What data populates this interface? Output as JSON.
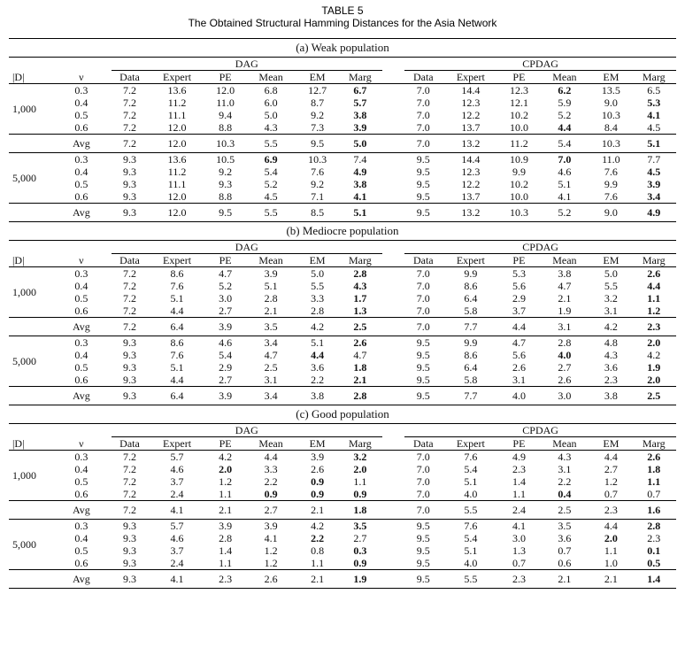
{
  "table_label": "TABLE 5",
  "table_title": "The Obtained Structural Hamming Distances for the Asia Network",
  "group_dag": "DAG",
  "group_cpdag": "CPDAG",
  "col_d": "|D|",
  "col_nu": "ν",
  "method_cols": [
    "Data",
    "Expert",
    "PE",
    "Mean",
    "EM",
    "Marg"
  ],
  "sections": [
    {
      "title": "(a) Weak population",
      "blocks": [
        {
          "d": "1,000",
          "rows": [
            {
              "nu": "0.3",
              "dag": [
                "7.2",
                "13.6",
                "12.0",
                "6.8",
                "12.7",
                "6.7"
              ],
              "cpdag": [
                "7.0",
                "14.4",
                "12.3",
                "6.2",
                "13.5",
                "6.5"
              ],
              "dag_bold": [
                5
              ],
              "cpdag_bold": [
                3
              ]
            },
            {
              "nu": "0.4",
              "dag": [
                "7.2",
                "11.2",
                "11.0",
                "6.0",
                "8.7",
                "5.7"
              ],
              "cpdag": [
                "7.0",
                "12.3",
                "12.1",
                "5.9",
                "9.0",
                "5.3"
              ],
              "dag_bold": [
                5
              ],
              "cpdag_bold": [
                5
              ]
            },
            {
              "nu": "0.5",
              "dag": [
                "7.2",
                "11.1",
                "9.4",
                "5.0",
                "9.2",
                "3.8"
              ],
              "cpdag": [
                "7.0",
                "12.2",
                "10.2",
                "5.2",
                "10.3",
                "4.1"
              ],
              "dag_bold": [
                5
              ],
              "cpdag_bold": [
                5
              ]
            },
            {
              "nu": "0.6",
              "dag": [
                "7.2",
                "12.0",
                "8.8",
                "4.3",
                "7.3",
                "3.9"
              ],
              "cpdag": [
                "7.0",
                "13.7",
                "10.0",
                "4.4",
                "8.4",
                "4.5"
              ],
              "dag_bold": [
                5
              ],
              "cpdag_bold": [
                3
              ]
            }
          ],
          "avg": {
            "label": "Avg",
            "dag": [
              "7.2",
              "12.0",
              "10.3",
              "5.5",
              "9.5",
              "5.0"
            ],
            "cpdag": [
              "7.0",
              "13.2",
              "11.2",
              "5.4",
              "10.3",
              "5.1"
            ],
            "dag_bold": [
              5
            ],
            "cpdag_bold": [
              5
            ]
          }
        },
        {
          "d": "5,000",
          "rows": [
            {
              "nu": "0.3",
              "dag": [
                "9.3",
                "13.6",
                "10.5",
                "6.9",
                "10.3",
                "7.4"
              ],
              "cpdag": [
                "9.5",
                "14.4",
                "10.9",
                "7.0",
                "11.0",
                "7.7"
              ],
              "dag_bold": [
                3
              ],
              "cpdag_bold": [
                3
              ]
            },
            {
              "nu": "0.4",
              "dag": [
                "9.3",
                "11.2",
                "9.2",
                "5.4",
                "7.6",
                "4.9"
              ],
              "cpdag": [
                "9.5",
                "12.3",
                "9.9",
                "4.6",
                "7.6",
                "4.5"
              ],
              "dag_bold": [
                5
              ],
              "cpdag_bold": [
                5
              ]
            },
            {
              "nu": "0.5",
              "dag": [
                "9.3",
                "11.1",
                "9.3",
                "5.2",
                "9.2",
                "3.8"
              ],
              "cpdag": [
                "9.5",
                "12.2",
                "10.2",
                "5.1",
                "9.9",
                "3.9"
              ],
              "dag_bold": [
                5
              ],
              "cpdag_bold": [
                5
              ]
            },
            {
              "nu": "0.6",
              "dag": [
                "9.3",
                "12.0",
                "8.8",
                "4.5",
                "7.1",
                "4.1"
              ],
              "cpdag": [
                "9.5",
                "13.7",
                "10.0",
                "4.1",
                "7.6",
                "3.4"
              ],
              "dag_bold": [
                5
              ],
              "cpdag_bold": [
                5
              ]
            }
          ],
          "avg": {
            "label": "Avg",
            "dag": [
              "9.3",
              "12.0",
              "9.5",
              "5.5",
              "8.5",
              "5.1"
            ],
            "cpdag": [
              "9.5",
              "13.2",
              "10.3",
              "5.2",
              "9.0",
              "4.9"
            ],
            "dag_bold": [
              5
            ],
            "cpdag_bold": [
              5
            ]
          }
        }
      ]
    },
    {
      "title": "(b) Mediocre population",
      "blocks": [
        {
          "d": "1,000",
          "rows": [
            {
              "nu": "0.3",
              "dag": [
                "7.2",
                "8.6",
                "4.7",
                "3.9",
                "5.0",
                "2.8"
              ],
              "cpdag": [
                "7.0",
                "9.9",
                "5.3",
                "3.8",
                "5.0",
                "2.6"
              ],
              "dag_bold": [
                5
              ],
              "cpdag_bold": [
                5
              ]
            },
            {
              "nu": "0.4",
              "dag": [
                "7.2",
                "7.6",
                "5.2",
                "5.1",
                "5.5",
                "4.3"
              ],
              "cpdag": [
                "7.0",
                "8.6",
                "5.6",
                "4.7",
                "5.5",
                "4.4"
              ],
              "dag_bold": [
                5
              ],
              "cpdag_bold": [
                5
              ]
            },
            {
              "nu": "0.5",
              "dag": [
                "7.2",
                "5.1",
                "3.0",
                "2.8",
                "3.3",
                "1.7"
              ],
              "cpdag": [
                "7.0",
                "6.4",
                "2.9",
                "2.1",
                "3.2",
                "1.1"
              ],
              "dag_bold": [
                5
              ],
              "cpdag_bold": [
                5
              ]
            },
            {
              "nu": "0.6",
              "dag": [
                "7.2",
                "4.4",
                "2.7",
                "2.1",
                "2.8",
                "1.3"
              ],
              "cpdag": [
                "7.0",
                "5.8",
                "3.7",
                "1.9",
                "3.1",
                "1.2"
              ],
              "dag_bold": [
                5
              ],
              "cpdag_bold": [
                5
              ]
            }
          ],
          "avg": {
            "label": "Avg",
            "dag": [
              "7.2",
              "6.4",
              "3.9",
              "3.5",
              "4.2",
              "2.5"
            ],
            "cpdag": [
              "7.0",
              "7.7",
              "4.4",
              "3.1",
              "4.2",
              "2.3"
            ],
            "dag_bold": [
              5
            ],
            "cpdag_bold": [
              5
            ]
          }
        },
        {
          "d": "5,000",
          "rows": [
            {
              "nu": "0.3",
              "dag": [
                "9.3",
                "8.6",
                "4.6",
                "3.4",
                "5.1",
                "2.6"
              ],
              "cpdag": [
                "9.5",
                "9.9",
                "4.7",
                "2.8",
                "4.8",
                "2.0"
              ],
              "dag_bold": [
                5
              ],
              "cpdag_bold": [
                5
              ]
            },
            {
              "nu": "0.4",
              "dag": [
                "9.3",
                "7.6",
                "5.4",
                "4.7",
                "4.4",
                "4.7"
              ],
              "cpdag": [
                "9.5",
                "8.6",
                "5.6",
                "4.0",
                "4.3",
                "4.2"
              ],
              "dag_bold": [
                4
              ],
              "cpdag_bold": [
                3
              ]
            },
            {
              "nu": "0.5",
              "dag": [
                "9.3",
                "5.1",
                "2.9",
                "2.5",
                "3.6",
                "1.8"
              ],
              "cpdag": [
                "9.5",
                "6.4",
                "2.6",
                "2.7",
                "3.6",
                "1.9"
              ],
              "dag_bold": [
                5
              ],
              "cpdag_bold": [
                5
              ]
            },
            {
              "nu": "0.6",
              "dag": [
                "9.3",
                "4.4",
                "2.7",
                "3.1",
                "2.2",
                "2.1"
              ],
              "cpdag": [
                "9.5",
                "5.8",
                "3.1",
                "2.6",
                "2.3",
                "2.0"
              ],
              "dag_bold": [
                5
              ],
              "cpdag_bold": [
                5
              ]
            }
          ],
          "avg": {
            "label": "Avg",
            "dag": [
              "9.3",
              "6.4",
              "3.9",
              "3.4",
              "3.8",
              "2.8"
            ],
            "cpdag": [
              "9.5",
              "7.7",
              "4.0",
              "3.0",
              "3.8",
              "2.5"
            ],
            "dag_bold": [
              5
            ],
            "cpdag_bold": [
              5
            ]
          }
        }
      ]
    },
    {
      "title": "(c) Good population",
      "blocks": [
        {
          "d": "1,000",
          "rows": [
            {
              "nu": "0.3",
              "dag": [
                "7.2",
                "5.7",
                "4.2",
                "4.4",
                "3.9",
                "3.2"
              ],
              "cpdag": [
                "7.0",
                "7.6",
                "4.9",
                "4.3",
                "4.4",
                "2.6"
              ],
              "dag_bold": [
                5
              ],
              "cpdag_bold": [
                5
              ]
            },
            {
              "nu": "0.4",
              "dag": [
                "7.2",
                "4.6",
                "2.0",
                "3.3",
                "2.6",
                "2.0"
              ],
              "cpdag": [
                "7.0",
                "5.4",
                "2.3",
                "3.1",
                "2.7",
                "1.8"
              ],
              "dag_bold": [
                2,
                5
              ],
              "cpdag_bold": [
                5
              ]
            },
            {
              "nu": "0.5",
              "dag": [
                "7.2",
                "3.7",
                "1.2",
                "2.2",
                "0.9",
                "1.1"
              ],
              "cpdag": [
                "7.0",
                "5.1",
                "1.4",
                "2.2",
                "1.2",
                "1.1"
              ],
              "dag_bold": [
                4
              ],
              "cpdag_bold": [
                5
              ]
            },
            {
              "nu": "0.6",
              "dag": [
                "7.2",
                "2.4",
                "1.1",
                "0.9",
                "0.9",
                "0.9"
              ],
              "cpdag": [
                "7.0",
                "4.0",
                "1.1",
                "0.4",
                "0.7",
                "0.7"
              ],
              "dag_bold": [
                3,
                4,
                5
              ],
              "cpdag_bold": [
                3
              ]
            }
          ],
          "avg": {
            "label": "Avg",
            "dag": [
              "7.2",
              "4.1",
              "2.1",
              "2.7",
              "2.1",
              "1.8"
            ],
            "cpdag": [
              "7.0",
              "5.5",
              "2.4",
              "2.5",
              "2.3",
              "1.6"
            ],
            "dag_bold": [
              5
            ],
            "cpdag_bold": [
              5
            ]
          }
        },
        {
          "d": "5,000",
          "rows": [
            {
              "nu": "0.3",
              "dag": [
                "9.3",
                "5.7",
                "3.9",
                "3.9",
                "4.2",
                "3.5"
              ],
              "cpdag": [
                "9.5",
                "7.6",
                "4.1",
                "3.5",
                "4.4",
                "2.8"
              ],
              "dag_bold": [
                5
              ],
              "cpdag_bold": [
                5
              ]
            },
            {
              "nu": "0.4",
              "dag": [
                "9.3",
                "4.6",
                "2.8",
                "4.1",
                "2.2",
                "2.7"
              ],
              "cpdag": [
                "9.5",
                "5.4",
                "3.0",
                "3.6",
                "2.0",
                "2.3"
              ],
              "dag_bold": [
                4
              ],
              "cpdag_bold": [
                4
              ]
            },
            {
              "nu": "0.5",
              "dag": [
                "9.3",
                "3.7",
                "1.4",
                "1.2",
                "0.8",
                "0.3"
              ],
              "cpdag": [
                "9.5",
                "5.1",
                "1.3",
                "0.7",
                "1.1",
                "0.1"
              ],
              "dag_bold": [
                5
              ],
              "cpdag_bold": [
                5
              ]
            },
            {
              "nu": "0.6",
              "dag": [
                "9.3",
                "2.4",
                "1.1",
                "1.2",
                "1.1",
                "0.9"
              ],
              "cpdag": [
                "9.5",
                "4.0",
                "0.7",
                "0.6",
                "1.0",
                "0.5"
              ],
              "dag_bold": [
                5
              ],
              "cpdag_bold": [
                5
              ]
            }
          ],
          "avg": {
            "label": "Avg",
            "dag": [
              "9.3",
              "4.1",
              "2.3",
              "2.6",
              "2.1",
              "1.9"
            ],
            "cpdag": [
              "9.5",
              "5.5",
              "2.3",
              "2.1",
              "2.1",
              "1.4"
            ],
            "dag_bold": [
              5
            ],
            "cpdag_bold": [
              5
            ]
          }
        }
      ]
    }
  ]
}
